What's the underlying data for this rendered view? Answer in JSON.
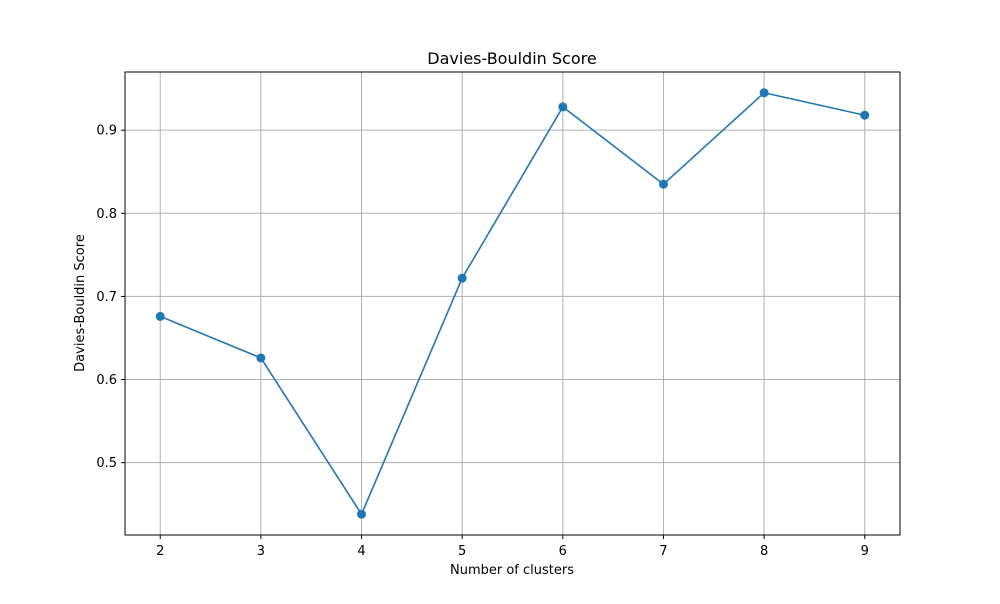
{
  "chart_data": {
    "type": "line",
    "title": "Davies-Bouldin Score",
    "xlabel": "Number of clusters",
    "ylabel": "Davies-Bouldin Score",
    "x": [
      2,
      3,
      4,
      5,
      6,
      7,
      8,
      9
    ],
    "series": [
      {
        "values": [
          0.676,
          0.626,
          0.438,
          0.722,
          0.928,
          0.835,
          0.945,
          0.918
        ]
      }
    ],
    "xlim": [
      1.65,
      9.35
    ],
    "ylim": [
      0.413,
      0.97
    ],
    "xticks": [
      "2",
      "3",
      "4",
      "5",
      "6",
      "7",
      "8",
      "9"
    ],
    "xtick_values": [
      2,
      3,
      4,
      5,
      6,
      7,
      8,
      9
    ],
    "yticks": [
      "0.5",
      "0.6",
      "0.7",
      "0.8",
      "0.9"
    ],
    "ytick_values": [
      0.5,
      0.6,
      0.7,
      0.8,
      0.9
    ],
    "grid": true,
    "marker": "circle",
    "colors": {
      "line": "#1f77b4",
      "grid": "#b0b0b0",
      "axis": "#000000"
    }
  }
}
